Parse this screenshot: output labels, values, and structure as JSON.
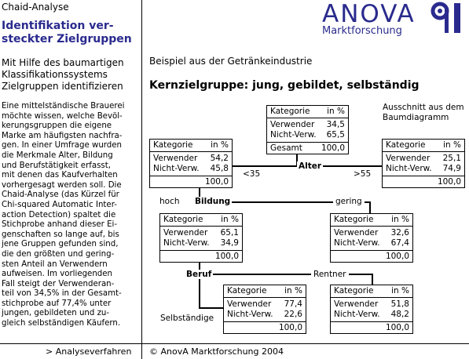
{
  "sidebar": {
    "title": "Chaid-Analyse",
    "heading_l1": "Identifikation ver-",
    "heading_l2": "steckter Zielgruppen",
    "subtitle_l1": "Mit Hilfe des baumartigen",
    "subtitle_l2": "Klassifikationssystems",
    "subtitle_l3": "Zielgruppen identifizieren",
    "body_lines": [
      "Eine mittelständische Brauerei",
      "möchte wissen, welche Bevöl-",
      "kerungsgruppen die eigene",
      "Marke am häufigsten nachfra-",
      "gen. In einer Umfrage wurden",
      "die Merkmale Alter, Bildung",
      "und Berufstätigkeit erfasst,",
      "mit denen das Kaufverhalten",
      "vorhergesagt werden soll. Die",
      "Chaid-Analyse (das Kürzel für",
      "Chi-squared Automatic Inter-",
      "action Detection) spaltet die",
      "Stichprobe anhand dieser Ei-",
      "genschaften so lange auf, bis",
      "jene Gruppen gefunden sind,",
      "die den größten und gering-",
      "sten Anteil an Verwendern",
      "aufweisen. Im vorliegenden",
      "Fall steigt der Verwenderan-",
      "teil von 34,5% in der Gesamt-",
      "stichprobe auf 77,4% unter",
      "jungen, gebildeten und zu-",
      "gleich selbständigen Käufern."
    ],
    "link": "> Analyseverfahren"
  },
  "logo": {
    "name": "ANOVA",
    "subtitle": "Marktforschung"
  },
  "main": {
    "intro": "Beispiel aus der Getränkeindustrie",
    "heading": "Kernzielgruppe: jung, gebildet, selbständig",
    "note_l1": "Ausschnitt aus dem",
    "note_l2": "Baumdiagramm"
  },
  "footer": "© AnovA Marktforschung 2004",
  "tree": {
    "col_label": "Kategorie",
    "col_pct": "in %",
    "row1": "Verwender",
    "row2": "Nicht-Verw.",
    "total_label": "Gesamt",
    "split_labels": {
      "age": "Alter",
      "age_young": "<35",
      "age_old": ">55",
      "edu": "Bildung",
      "edu_high": "hoch",
      "edu_low": "gering",
      "job": "Beruf",
      "job_self": "Selbständige",
      "job_retired": "Rentner"
    },
    "nodes": {
      "root": {
        "v": "34,5",
        "n": "65,5",
        "total": "100,0"
      },
      "young": {
        "v": "54,2",
        "n": "45,8",
        "total": "100,0"
      },
      "old": {
        "v": "25,1",
        "n": "74,9",
        "total": "100,0"
      },
      "high": {
        "v": "65,1",
        "n": "34,9",
        "total": "100,0"
      },
      "low": {
        "v": "32,6",
        "n": "67,4",
        "total": "100,0"
      },
      "self": {
        "v": "77,4",
        "n": "22,6",
        "total": "100,0"
      },
      "retired": {
        "v": "51,8",
        "n": "48,2",
        "total": "100,0"
      }
    }
  }
}
